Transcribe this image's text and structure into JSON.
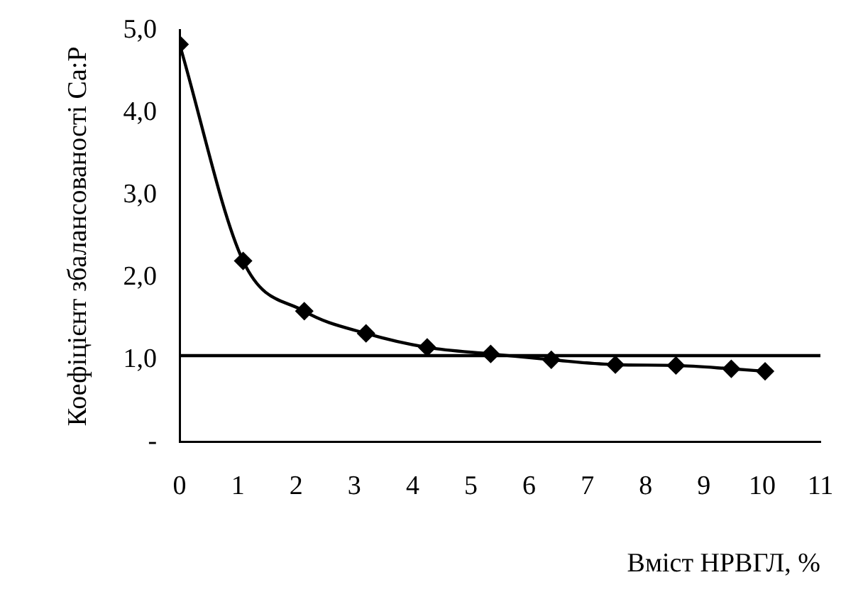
{
  "chart_data": {
    "type": "line",
    "xlabel": "Вміст НРВГЛ, %",
    "ylabel": "Коефіцієнт збалансованості Ca:P",
    "x": [
      0,
      1.09,
      2.14,
      3.2,
      4.25,
      5.34,
      6.38,
      7.48,
      8.52,
      9.47,
      10.05
    ],
    "series": [
      {
        "color": "#000000",
        "values": [
          4.83,
          2.2,
          1.59,
          1.32,
          1.15,
          1.07,
          1.0,
          0.94,
          0.93,
          0.89,
          0.86
        ]
      }
    ],
    "xlim": [
      0,
      11
    ],
    "xticks": [
      0,
      1,
      2,
      3,
      4,
      5,
      6,
      7,
      8,
      9,
      10,
      11
    ],
    "ylim": [
      0,
      5
    ],
    "yticks": [
      {
        "value": 0,
        "label": "-"
      },
      {
        "value": 1,
        "label": "1,0"
      },
      {
        "value": 2,
        "label": "2,0"
      },
      {
        "value": 3,
        "label": "3,0"
      },
      {
        "value": 4,
        "label": "4,0"
      },
      {
        "value": 5,
        "label": "5,0"
      }
    ],
    "ref_lines": [
      {
        "axis": "y",
        "value": 1.05,
        "color": "#000000"
      }
    ],
    "marker": "diamond",
    "grid": false,
    "legend": false
  }
}
